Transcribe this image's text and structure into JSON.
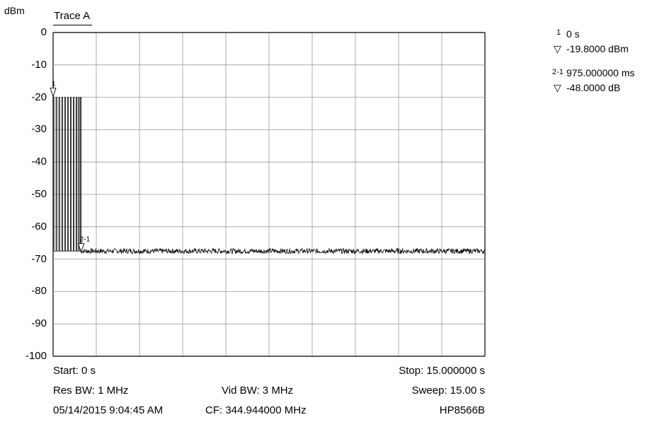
{
  "header": {
    "unit_label": "dBm",
    "trace_label": "Trace A"
  },
  "markers_panel": {
    "marker1": {
      "id": "1",
      "time": "0 s",
      "level": "-19.8000 dBm"
    },
    "marker2": {
      "id": "2-1",
      "time": "975.000000 ms",
      "level": "-48.0000 dB"
    }
  },
  "footer": {
    "start": "Start: 0 s",
    "stop": "Stop: 15.000000 s",
    "res_bw": "Res BW: 1 MHz",
    "vid_bw": "Vid BW: 3 MHz",
    "sweep": "Sweep: 15.00 s",
    "datetime": "05/14/2015 9:04:45 AM",
    "cf": "CF: 344.944000 MHz",
    "model": "HP8566B"
  },
  "chart_data": {
    "type": "line",
    "title": "Trace A",
    "ylabel": "dBm",
    "xlabel": "",
    "xlim": [
      0,
      15
    ],
    "ylim": [
      -100,
      0
    ],
    "yticks": [
      "0",
      "-10",
      "-20",
      "-30",
      "-40",
      "-50",
      "-60",
      "-70",
      "-80",
      "-90",
      "-100"
    ],
    "x_divisions": 10,
    "grid": true,
    "series": [
      {
        "values_description_free": true,
        "bursts": [
          {
            "x": 0.0,
            "y": -20
          },
          {
            "x": 0.1,
            "y": -20
          },
          {
            "x": 0.2,
            "y": -20
          },
          {
            "x": 0.3,
            "y": -20
          },
          {
            "x": 0.4,
            "y": -20
          },
          {
            "x": 0.5,
            "y": -20
          },
          {
            "x": 0.6,
            "y": -20
          },
          {
            "x": 0.7,
            "y": -20
          },
          {
            "x": 0.8,
            "y": -20
          },
          {
            "x": 0.88,
            "y": -20
          },
          {
            "x": 0.95,
            "y": -20
          }
        ],
        "noise_floor": -67.5
      }
    ],
    "markers": [
      {
        "label": "1",
        "x": 0,
        "y": -19.8
      },
      {
        "label": "2-1",
        "x": 0.975,
        "y": -67.8
      }
    ]
  }
}
